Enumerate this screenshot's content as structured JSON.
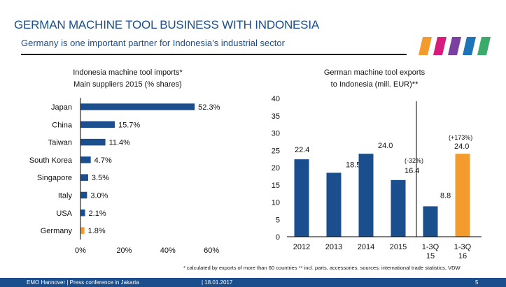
{
  "header": {
    "title": "GERMAN MACHINE TOOL BUSINESS WITH INDONESIA",
    "subtitle": "Germany is one important partner for Indonesia’s industrial sector"
  },
  "logo": {
    "icon": "vdw-color-stripes-logo",
    "colors": [
      "#f39c2d",
      "#d81b7d",
      "#7b3fa0",
      "#1e74b8",
      "#3aab6a"
    ]
  },
  "left_title": {
    "line1": "Indonesia machine tool imports*",
    "line2": "Main suppliers 2015 (% shares)"
  },
  "right_title": {
    "line1": "German machine tool exports",
    "line2": "to Indonesia (mill. EUR)**"
  },
  "footnote": "* calculated by exports of more than 60 countries  ** incl. parts, accessories. sources: international trade statistics, VDW",
  "footer": {
    "event": "EMO Hannover | Press conference in Jakarta",
    "date": "| 18.01.2017",
    "page": "5"
  },
  "chart_data": [
    {
      "type": "bar",
      "orientation": "horizontal",
      "categories": [
        "Japan",
        "China",
        "Taiwan",
        "South Korea",
        "Singapore",
        "Italy",
        "USA",
        "Germany"
      ],
      "values": [
        52.3,
        15.7,
        11.4,
        4.7,
        3.5,
        3.0,
        2.1,
        1.8
      ],
      "data_labels": [
        "52.3%",
        "15.7%",
        "11.4%",
        "4.7%",
        "3.5%",
        "3.0%",
        "2.1%",
        "1.8%"
      ],
      "xlim": [
        0,
        60
      ],
      "xticks": [
        "0%",
        "20%",
        "40%",
        "60%"
      ],
      "colors": [
        "#1a4e8c",
        "#1a4e8c",
        "#1a4e8c",
        "#1a4e8c",
        "#1a4e8c",
        "#1a4e8c",
        "#1a4e8c",
        "#f39c2d"
      ],
      "grid": false
    },
    {
      "type": "bar",
      "categories": [
        "2012",
        "2013",
        "2014",
        "2015",
        "1-3Q 15",
        "1-3Q 16"
      ],
      "category_lines": [
        [
          "2012"
        ],
        [
          "2013"
        ],
        [
          "2014"
        ],
        [
          "2015"
        ],
        [
          "1-3Q",
          "15"
        ],
        [
          "1-3Q",
          "16"
        ]
      ],
      "values": [
        22.4,
        18.5,
        24.0,
        16.4,
        8.8,
        24.0
      ],
      "data_labels": [
        "22.4",
        "18.5",
        "24.0",
        "16.4",
        "8.8",
        "24.0"
      ],
      "annotations": [
        "",
        "",
        "",
        "(-32%)",
        "",
        "(+173%)"
      ],
      "ylim": [
        0,
        40
      ],
      "yticks": [
        "0",
        "5",
        "10",
        "15",
        "20",
        "25",
        "30",
        "35",
        "40"
      ],
      "colors": [
        "#1a4e8c",
        "#1a4e8c",
        "#1a4e8c",
        "#1a4e8c",
        "#1a4e8c",
        "#f39c2d"
      ],
      "separator_after": "2015",
      "grid": false
    }
  ]
}
